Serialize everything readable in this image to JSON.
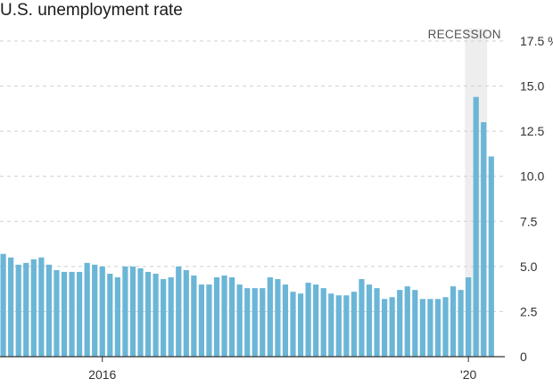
{
  "title": "U.S. unemployment rate",
  "recession_label": "RECESSION",
  "colors": {
    "bar": "#6bb6d6",
    "recession_band": "#eeeeee",
    "grid": "#cfcfcf",
    "baseline": "#333333",
    "text": "#333333"
  },
  "chart_data": {
    "type": "bar",
    "title": "U.S. unemployment rate",
    "ylabel": "",
    "y_unit": "%",
    "ylim": [
      0,
      17.5
    ],
    "y_ticks": [
      0,
      2.5,
      5.0,
      7.5,
      10.0,
      12.5,
      15.0,
      17.5
    ],
    "y_tick_labels": [
      "0",
      "2.5",
      "5.0",
      "7.5",
      "10.0",
      "12.5",
      "15.0",
      "17.5 %"
    ],
    "grid": true,
    "x_tick_labels": [
      {
        "label": "2016",
        "index": 13
      },
      {
        "label": "'20",
        "index": 61
      }
    ],
    "recession": {
      "start_index": 61,
      "end_index": 63
    },
    "values": [
      5.7,
      5.5,
      5.1,
      5.2,
      5.4,
      5.5,
      5.1,
      4.8,
      4.7,
      4.7,
      4.7,
      5.2,
      5.1,
      5.0,
      4.6,
      4.4,
      5.0,
      5.0,
      4.9,
      4.7,
      4.6,
      4.3,
      4.4,
      5.0,
      4.8,
      4.5,
      4.0,
      4.0,
      4.4,
      4.5,
      4.4,
      4.0,
      3.8,
      3.8,
      3.8,
      4.4,
      4.3,
      4.0,
      3.6,
      3.5,
      4.1,
      4.0,
      3.8,
      3.5,
      3.4,
      3.4,
      3.6,
      4.3,
      4.0,
      3.8,
      3.2,
      3.3,
      3.7,
      3.9,
      3.7,
      3.2,
      3.2,
      3.2,
      3.3,
      3.9,
      3.7,
      4.4,
      14.4,
      13.0,
      11.1
    ]
  }
}
